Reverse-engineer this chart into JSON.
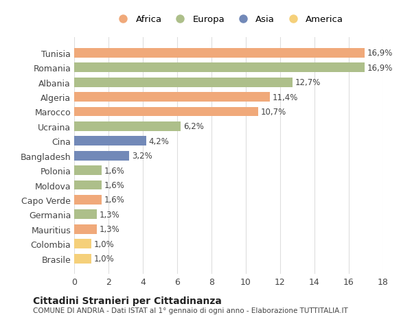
{
  "categories": [
    "Tunisia",
    "Romania",
    "Albania",
    "Algeria",
    "Marocco",
    "Ucraina",
    "Cina",
    "Bangladesh",
    "Polonia",
    "Moldova",
    "Capo Verde",
    "Germania",
    "Mauritius",
    "Colombia",
    "Brasile"
  ],
  "values": [
    16.9,
    16.9,
    12.7,
    11.4,
    10.7,
    6.2,
    4.2,
    3.2,
    1.6,
    1.6,
    1.6,
    1.3,
    1.3,
    1.0,
    1.0
  ],
  "labels": [
    "16,9%",
    "16,9%",
    "12,7%",
    "11,4%",
    "10,7%",
    "6,2%",
    "4,2%",
    "3,2%",
    "1,6%",
    "1,6%",
    "1,6%",
    "1,3%",
    "1,3%",
    "1,0%",
    "1,0%"
  ],
  "continents": [
    "Africa",
    "Europa",
    "Europa",
    "Africa",
    "Africa",
    "Europa",
    "Asia",
    "Asia",
    "Europa",
    "Europa",
    "Africa",
    "Europa",
    "Africa",
    "America",
    "America"
  ],
  "colors": {
    "Africa": "#F0A97A",
    "Europa": "#ADBF8A",
    "Asia": "#7289B8",
    "America": "#F5D07A"
  },
  "legend_order": [
    "Africa",
    "Europa",
    "Asia",
    "America"
  ],
  "xlim": [
    0,
    18
  ],
  "xticks": [
    0,
    2,
    4,
    6,
    8,
    10,
    12,
    14,
    16,
    18
  ],
  "title": "Cittadini Stranieri per Cittadinanza",
  "subtitle": "COMUNE DI ANDRIA - Dati ISTAT al 1° gennaio di ogni anno - Elaborazione TUTTITALIA.IT",
  "bg_color": "#ffffff",
  "grid_color": "#dddddd"
}
